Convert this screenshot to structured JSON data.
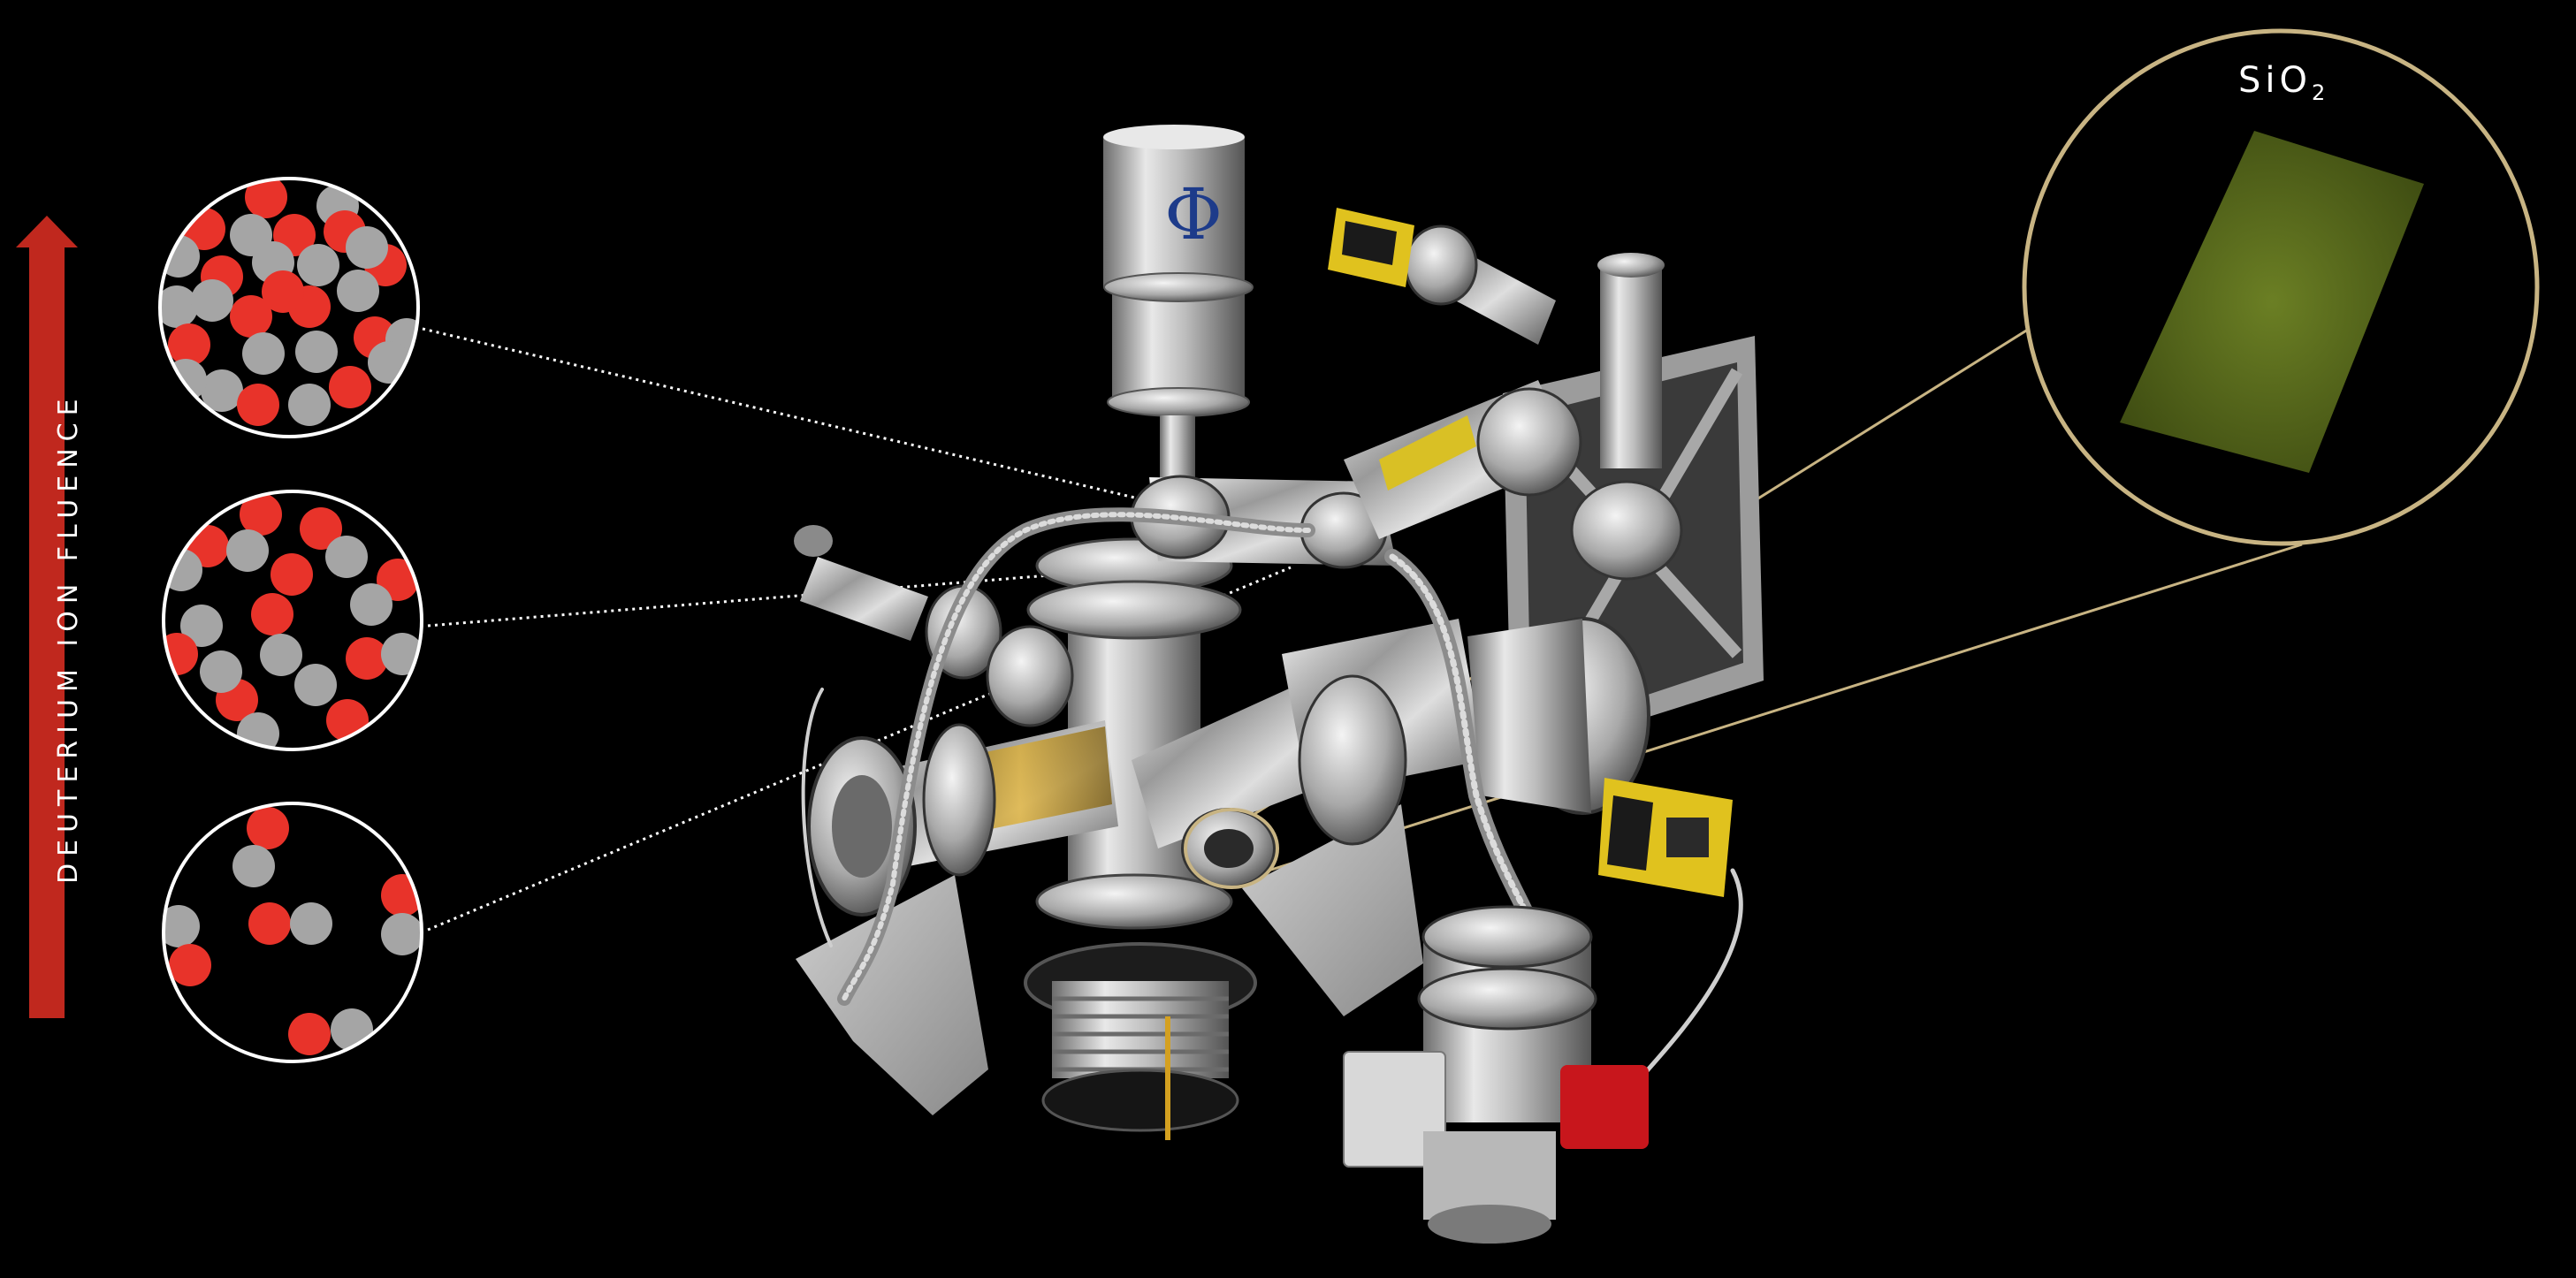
{
  "axis": {
    "label": "DEUTERIUM ION FLUENCE",
    "arrow_color": "#c0281e"
  },
  "sample": {
    "formula": "SiO",
    "subscript": "2",
    "ring_color": "#c8b483",
    "sample_color": "#5c6e1e"
  },
  "colors": {
    "deuterium": "#e8332a",
    "atom": "#a5a5a5",
    "background": "#000000",
    "connector": "#ffffff"
  },
  "atom_circles": [
    {
      "level": "high",
      "deuterium_count": 15,
      "atom_count": 14
    },
    {
      "level": "medium",
      "deuterium_count": 10,
      "atom_count": 10
    },
    {
      "level": "low",
      "deuterium_count": 5,
      "atom_count": 5
    }
  ],
  "apparatus": {
    "kind": "ultra-high-vacuum chamber photograph",
    "logo_glyph": "Φ"
  }
}
